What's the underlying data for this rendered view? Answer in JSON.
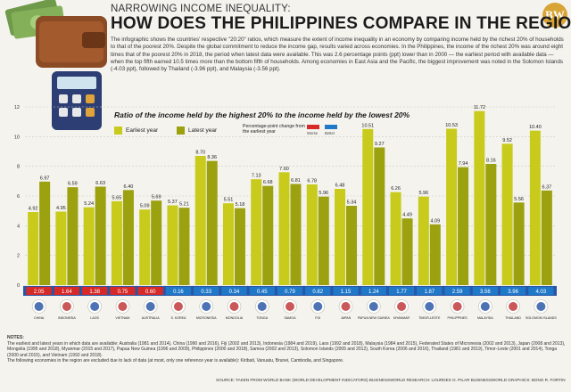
{
  "header": {
    "kicker": "NARROWING INCOME INEQUALITY:",
    "title": "HOW DOES THE PHILIPPINES COMPARE IN THE REGION?",
    "description": "The infographic shows the countries' respective \"20:20\" ratios, which measure the extent of income inequality in an economy by comparing income held by the richest 20% of households to that of the poorest 20%. Despite the global commitment to reduce the income gap, results varied across economies. In the Philippines, the income of the richest 20% was around eight times that of the poorest 20% in 2018, the period when latest data were available. This was 2.6 percentage points (ppt) lower than in 2000 — the earliest period with available data — when the top fifth earned 10.5 times more than the bottom fifth of households. Among economies in East Asia and the Pacific, the biggest improvement was noted in the Solomon Islands (-4.03 ppt), followed by Thailand (-3.96 ppt), and Malaysia (-3.56 ppt).",
    "logo_text": "BW"
  },
  "legend": {
    "earliest_label": "Earliest year",
    "latest_label": "Latest year",
    "change_title": "Percentage-point change from the earliest year",
    "worse_label": "Worse",
    "better_label": "Better"
  },
  "colors": {
    "earliest": "#c8cb1c",
    "latest": "#9ba10f",
    "worse": "#d62a28",
    "better": "#1f78c8",
    "change_strip": "#2a55a6"
  },
  "chart_data": {
    "type": "bar",
    "title": "Ratio of the income held by the highest 20% to the income held by the lowest 20%",
    "ylim": [
      0,
      12
    ],
    "yticks": [
      0,
      2,
      4,
      6,
      8,
      10,
      12
    ],
    "grid": true,
    "categories": [
      "CHINA",
      "INDONESIA",
      "LAOS",
      "VIETNAM",
      "AUSTRALIA",
      "S. KOREA",
      "MICRONESIA",
      "MONGOLIA",
      "TONGA",
      "SAMOA",
      "FIJI",
      "JAPAN",
      "PAPUA NEW GUINEA",
      "MYANMAR",
      "TIMOR-LESTE",
      "PHILIPPINES",
      "MALAYSIA",
      "THAILAND",
      "SOLOMON ISLANDS"
    ],
    "series": [
      {
        "name": "Earliest year",
        "values": [
          4.92,
          4.95,
          5.24,
          5.65,
          5.09,
          5.37,
          8.7,
          5.51,
          7.13,
          7.6,
          6.78,
          6.48,
          10.51,
          6.26,
          5.96,
          10.53,
          11.72,
          9.52,
          10.4
        ]
      },
      {
        "name": "Latest year",
        "values": [
          6.97,
          6.59,
          6.63,
          6.4,
          5.69,
          5.21,
          8.36,
          5.18,
          6.68,
          6.81,
          5.96,
          5.34,
          9.27,
          4.49,
          4.09,
          7.94,
          8.16,
          5.56,
          6.37
        ]
      }
    ],
    "change": {
      "labels": [
        "2.05",
        "1.64",
        "1.38",
        "0.75",
        "0.60",
        "0.16",
        "0.33",
        "0.34",
        "0.45",
        "0.79",
        "0.82",
        "1.15",
        "1.24",
        "1.77",
        "1.87",
        "2.59",
        "3.56",
        "3.96",
        "4.03"
      ],
      "direction": [
        "worse",
        "worse",
        "worse",
        "worse",
        "worse",
        "better",
        "better",
        "better",
        "better",
        "better",
        "better",
        "better",
        "better",
        "better",
        "better",
        "better",
        "better",
        "better",
        "better"
      ]
    },
    "legend_position": "top-left"
  },
  "notes": {
    "title": "NOTES:",
    "line1": "The earliest and latest years in which data are available: Australia (1981 and 2014), China (1990 and 2016), Fiji (2002 and 2013), Indonesia (1984 and 2019), Laos (1992 and 2018), Malaysia (1984 and 2015), Federated States of Micronesia (2002 and 2013), Japan (2008 and 2013), Mongolia (1995 and 2018), Myanmar (2015 and 2017), Papua New Guinea (1996 and 2009), Philippines (2000 and 2018), Samoa (2002 and 2013), Solomon Islands (2005 and 2012), South Korea (2006 and 2016), Thailand (1981 and 2019), Timor-Leste (2001 and 2014), Tonga (2000 and 2015), and Vietnam (1992 and 2018).",
    "line2": "The following economies in the region are excluded due to lack of data (at most, only one reference year is available): Kiribati, Vanuatu, Brunei, Cambodia, and Singapore."
  },
  "source": "SOURCE: TAKEN FROM WORLD BANK (WORLD DEVELOPMENT INDICATORS) BUSINESSWORLD RESEARCH: LOURDES O. PILAR BUSINESSWORLD GRAPHICS: BONG R. FORTIN"
}
